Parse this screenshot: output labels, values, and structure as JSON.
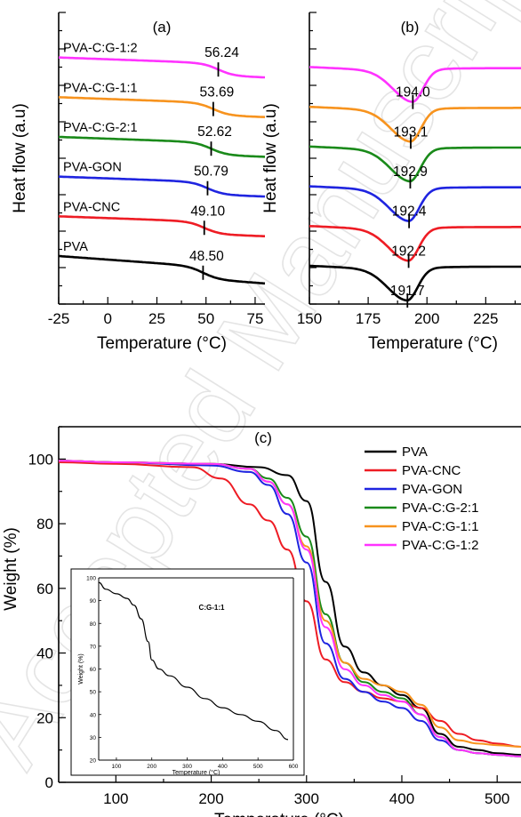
{
  "watermark": "Accepted Manuscript",
  "colors": {
    "PVA": "#000000",
    "PVA-CNC": "#ee1c24",
    "PVA-GON": "#1f24e0",
    "PVA-C:G-2:1": "#1a8a1a",
    "PVA-C:G-1:1": "#f7931e",
    "PVA-C:G-1:2": "#ff33ff"
  },
  "chart_data": [
    {
      "panel_label": "(a)",
      "type": "line",
      "xlabel": "Temperature (°C)",
      "ylabel": "Heat flow (a.u)",
      "xlim": [
        -25,
        80
      ],
      "x_ticks": [
        "-25",
        "0",
        "25",
        "50",
        "75"
      ],
      "y_ticks_numeric": false,
      "series": [
        {
          "name": "PVA",
          "transition": "48.50",
          "tg": 48.5
        },
        {
          "name": "PVA-CNC",
          "transition": "49.10",
          "tg": 49.1
        },
        {
          "name": "PVA-GON",
          "transition": "50.79",
          "tg": 50.79
        },
        {
          "name": "PVA-C:G-2:1",
          "transition": "52.62",
          "tg": 52.62
        },
        {
          "name": "PVA-C:G-1:1",
          "transition": "53.69",
          "tg": 53.69
        },
        {
          "name": "PVA-C:G-1:2",
          "transition": "56.24",
          "tg": 56.24
        }
      ]
    },
    {
      "panel_label": "(b)",
      "type": "line",
      "xlabel": "Temperature (°C)",
      "ylabel": "Heat flow (a.u)",
      "xlim": [
        150,
        240
      ],
      "x_ticks": [
        "150",
        "175",
        "200",
        "225"
      ],
      "y_ticks_numeric": false,
      "series": [
        {
          "name": "PVA",
          "transition": "191.7",
          "tm": 191.7
        },
        {
          "name": "PVA-CNC",
          "transition": "192.2",
          "tm": 192.2
        },
        {
          "name": "PVA-GON",
          "transition": "192.4",
          "tm": 192.4
        },
        {
          "name": "PVA-C:G-2:1",
          "transition": "192.9",
          "tm": 192.9
        },
        {
          "name": "PVA-C:G-1:1",
          "transition": "193.1",
          "tm": 193.1
        },
        {
          "name": "PVA-C:G-1:2",
          "transition": "194.0",
          "tm": 194.0
        }
      ]
    },
    {
      "panel_label": "(c)",
      "type": "line",
      "xlabel": "Temperature (°C)",
      "ylabel": "Weight (%)",
      "xlim": [
        40,
        525
      ],
      "ylim": [
        0,
        110
      ],
      "x_ticks": [
        "100",
        "200",
        "300",
        "400",
        "500"
      ],
      "y_ticks": [
        "0",
        "20",
        "40",
        "60",
        "80",
        "100"
      ],
      "legend_position": "top-right",
      "series": [
        {
          "name": "PVA",
          "x": [
            40,
            100,
            200,
            250,
            280,
            300,
            320,
            340,
            360,
            380,
            400,
            420,
            440,
            460,
            480,
            500,
            525
          ],
          "y": [
            99.5,
            99,
            98.5,
            97.5,
            95,
            87,
            62,
            42,
            34,
            30,
            27,
            23,
            15,
            11,
            10,
            9,
            8.5
          ]
        },
        {
          "name": "PVA-CNC",
          "x": [
            40,
            100,
            180,
            210,
            240,
            260,
            280,
            300,
            320,
            340,
            360,
            380,
            400,
            420,
            440,
            460,
            480,
            500,
            525
          ],
          "y": [
            99,
            98.5,
            97.5,
            94,
            86,
            81,
            72,
            56,
            38,
            31,
            28,
            26,
            25,
            23,
            19,
            15,
            13,
            12,
            11
          ]
        },
        {
          "name": "PVA-GON",
          "x": [
            40,
            100,
            200,
            240,
            260,
            280,
            300,
            320,
            340,
            360,
            380,
            400,
            420,
            440,
            460,
            480,
            500,
            525
          ],
          "y": [
            99.5,
            99,
            98,
            96,
            92,
            83,
            68,
            43,
            32,
            28,
            25,
            23,
            19,
            13,
            10,
            9,
            8.5,
            8
          ]
        },
        {
          "name": "PVA-C:G-2:1",
          "x": [
            40,
            100,
            200,
            240,
            260,
            280,
            300,
            320,
            340,
            360,
            380,
            400,
            420,
            440,
            460,
            480,
            500,
            525
          ],
          "y": [
            99.5,
            99,
            98.5,
            97,
            94,
            88,
            76,
            52,
            37,
            31,
            28,
            26,
            21,
            14,
            10,
            9,
            8.5,
            8
          ]
        },
        {
          "name": "PVA-C:G-1:1",
          "x": [
            40,
            100,
            200,
            240,
            260,
            280,
            300,
            320,
            340,
            360,
            380,
            400,
            420,
            440,
            460,
            480,
            500,
            525
          ],
          "y": [
            99.5,
            99,
            98.5,
            97,
            93,
            86,
            73,
            50,
            37,
            32,
            30,
            28,
            24,
            17,
            13,
            12,
            11.5,
            11
          ]
        },
        {
          "name": "PVA-C:G-1:2",
          "x": [
            40,
            100,
            200,
            240,
            260,
            280,
            300,
            320,
            340,
            360,
            380,
            400,
            420,
            440,
            460,
            480,
            500,
            525
          ],
          "y": [
            99.5,
            99,
            98.5,
            97,
            93,
            86,
            72,
            48,
            35,
            30,
            27,
            25,
            21,
            14,
            10,
            9,
            8.5,
            8
          ]
        }
      ],
      "inset": {
        "title": "C:G-1:1",
        "xlabel": "Temperature (°C)",
        "ylabel": "Weight (%)",
        "xlim": [
          50,
          600
        ],
        "ylim": [
          20,
          100
        ],
        "x_ticks": [
          "100",
          "200",
          "300",
          "400",
          "500",
          "600"
        ],
        "y_ticks": [
          "20",
          "30",
          "40",
          "50",
          "60",
          "70",
          "80",
          "90",
          "100"
        ],
        "x": [
          50,
          70,
          100,
          130,
          150,
          170,
          190,
          200,
          220,
          250,
          300,
          350,
          400,
          450,
          500,
          550,
          585
        ],
        "y": [
          98,
          95,
          93,
          91,
          88,
          82,
          72,
          64,
          60,
          57,
          52,
          47,
          43,
          40,
          37,
          33,
          29
        ]
      }
    }
  ]
}
